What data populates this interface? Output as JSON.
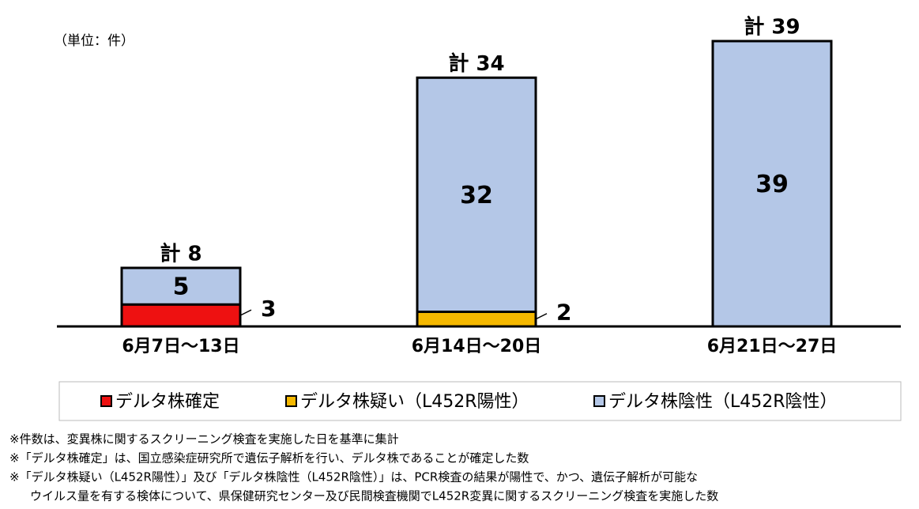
{
  "chart_data": {
    "type": "stacked-bar",
    "unit_label": "（単位：件）",
    "categories": [
      "6月7日～13日",
      "6月14日～20日",
      "6月21日～27日"
    ],
    "total_labels": [
      "計 8",
      "計 34",
      "計 39"
    ],
    "series": [
      {
        "name": "デルタ株確定",
        "color": "#ee1111",
        "values": [
          3,
          null,
          null
        ]
      },
      {
        "name": "デルタ株疑い（L452R陽性）",
        "color": "#f5b800",
        "values": [
          null,
          2,
          null
        ]
      },
      {
        "name": "デルタ株陰性（L452R陰性）",
        "color": "#b4c7e7",
        "values": [
          5,
          32,
          39
        ]
      }
    ],
    "notes": [
      "※件数は、変異株に関するスクリーニング検査を実施した日を基準に集計",
      "※「デルタ株確定」は、国立感染症研究所で遺伝子解析を行い、デルタ株であることが確定した数",
      "※「デルタ株疑い（L452R陽性）」及び「デルタ株陰性（L452R陰性）」は、PCR検査の結果が陽性で、かつ、遺伝子解析が可能な",
      "ウイルス量を有する検体について、県保健研究センター及び民間検査機関でL452R変異に関するスクリーニング検査を実施した数"
    ]
  }
}
